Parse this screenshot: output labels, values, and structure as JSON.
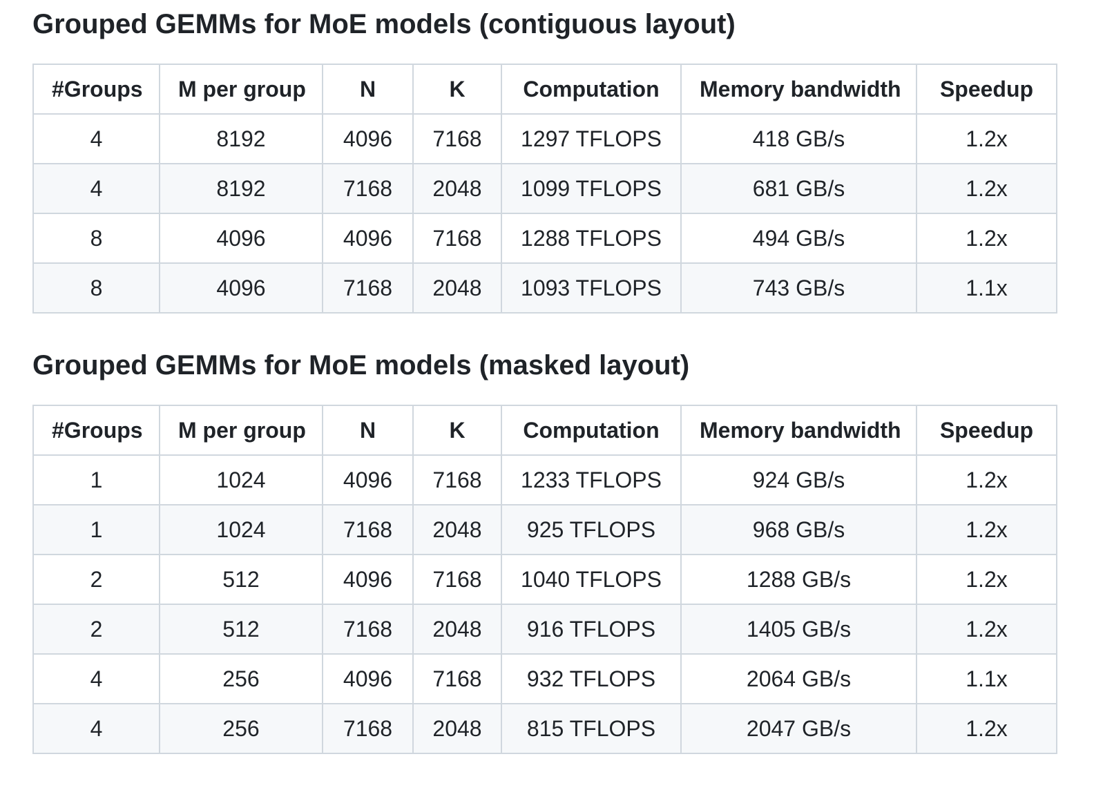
{
  "colors": {
    "text": "#1f2328",
    "border": "#d0d7de",
    "row_alt_background": "#f6f8fa",
    "background": "#ffffff"
  },
  "sections": [
    {
      "title": "Grouped GEMMs for MoE models (contiguous layout)",
      "columns": [
        "#Groups",
        "M per group",
        "N",
        "K",
        "Computation",
        "Memory bandwidth",
        "Speedup"
      ],
      "rows": [
        [
          "4",
          "8192",
          "4096",
          "7168",
          "1297 TFLOPS",
          "418 GB/s",
          "1.2x"
        ],
        [
          "4",
          "8192",
          "7168",
          "2048",
          "1099 TFLOPS",
          "681 GB/s",
          "1.2x"
        ],
        [
          "8",
          "4096",
          "4096",
          "7168",
          "1288 TFLOPS",
          "494 GB/s",
          "1.2x"
        ],
        [
          "8",
          "4096",
          "7168",
          "2048",
          "1093 TFLOPS",
          "743 GB/s",
          "1.1x"
        ]
      ]
    },
    {
      "title": "Grouped GEMMs for MoE models (masked layout)",
      "columns": [
        "#Groups",
        "M per group",
        "N",
        "K",
        "Computation",
        "Memory bandwidth",
        "Speedup"
      ],
      "rows": [
        [
          "1",
          "1024",
          "4096",
          "7168",
          "1233 TFLOPS",
          "924 GB/s",
          "1.2x"
        ],
        [
          "1",
          "1024",
          "7168",
          "2048",
          "925 TFLOPS",
          "968 GB/s",
          "1.2x"
        ],
        [
          "2",
          "512",
          "4096",
          "7168",
          "1040 TFLOPS",
          "1288 GB/s",
          "1.2x"
        ],
        [
          "2",
          "512",
          "7168",
          "2048",
          "916 TFLOPS",
          "1405 GB/s",
          "1.2x"
        ],
        [
          "4",
          "256",
          "4096",
          "7168",
          "932 TFLOPS",
          "2064 GB/s",
          "1.1x"
        ],
        [
          "4",
          "256",
          "7168",
          "2048",
          "815 TFLOPS",
          "2047 GB/s",
          "1.2x"
        ]
      ]
    }
  ]
}
